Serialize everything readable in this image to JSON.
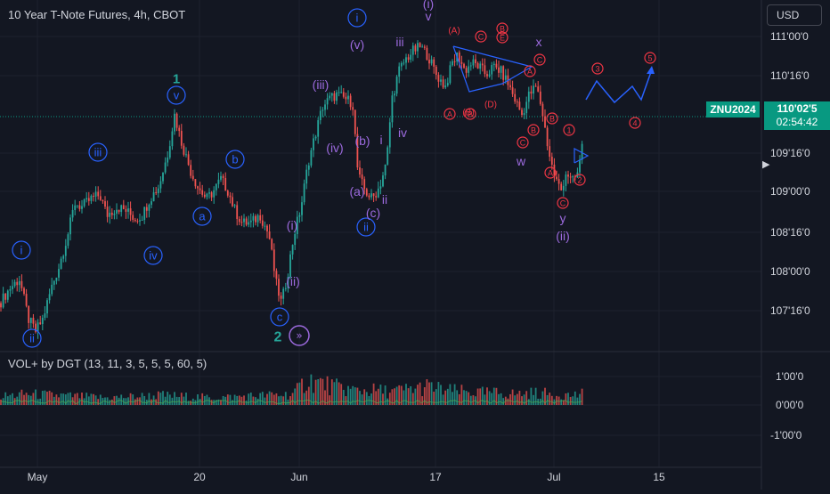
{
  "header": {
    "title": "10 Year T-Note Futures, 4h, CBOT",
    "currency": "USD"
  },
  "indicator": {
    "title": "VOL+ by DGT (13, 11, 3, 5, 5, 5, 60, 5)"
  },
  "price_badge": {
    "ticker": "ZNU2024",
    "price": "110'02'5",
    "countdown": "02:54:42"
  },
  "colors": {
    "background": "#131722",
    "up": "#26a69a",
    "down": "#ef5350",
    "wave_blue": "#2962ff",
    "wave_purple": "#9c6ade",
    "wave_red": "#f23645",
    "wave_teal": "#26a69a",
    "grid": "#1e222d",
    "price_line": "#089981"
  },
  "chart_data": [
    {
      "type": "candlestick",
      "title": "10 Year T-Note Futures, 4h, CBOT",
      "x_tick_labels": [
        "May",
        "20",
        "Jun",
        "17",
        "Jul",
        "15"
      ],
      "y_tick_labels": [
        "111'00'0",
        "110'16'0",
        "110'02'5",
        "109'16'0",
        "109'00'0",
        "108'16'0",
        "108'00'0",
        "107'16'0"
      ],
      "ylim": [
        107.2,
        111.2
      ],
      "last_price": 110.078,
      "grid": true,
      "close_path": [
        [
          0,
          107.75
        ],
        [
          12,
          107.95
        ],
        [
          22,
          108.05
        ],
        [
          32,
          107.55
        ],
        [
          40,
          107.4
        ],
        [
          48,
          107.55
        ],
        [
          58,
          107.95
        ],
        [
          66,
          108.2
        ],
        [
          76,
          108.6
        ],
        [
          84,
          109.0
        ],
        [
          92,
          108.95
        ],
        [
          102,
          109.05
        ],
        [
          112,
          109.1
        ],
        [
          120,
          108.85
        ],
        [
          132,
          108.95
        ],
        [
          142,
          108.9
        ],
        [
          152,
          108.8
        ],
        [
          160,
          108.85
        ],
        [
          168,
          109.05
        ],
        [
          178,
          109.2
        ],
        [
          188,
          109.6
        ],
        [
          196,
          110.1
        ],
        [
          204,
          109.75
        ],
        [
          214,
          109.4
        ],
        [
          222,
          109.2
        ],
        [
          232,
          109.05
        ],
        [
          240,
          109.15
        ],
        [
          248,
          109.3
        ],
        [
          256,
          109.15
        ],
        [
          264,
          108.9
        ],
        [
          272,
          108.75
        ],
        [
          282,
          108.75
        ],
        [
          292,
          108.85
        ],
        [
          302,
          108.6
        ],
        [
          310,
          108.0
        ],
        [
          316,
          107.75
        ],
        [
          322,
          108.05
        ],
        [
          330,
          108.6
        ],
        [
          338,
          108.95
        ],
        [
          346,
          109.5
        ],
        [
          354,
          109.85
        ],
        [
          362,
          110.2
        ],
        [
          370,
          110.3
        ],
        [
          378,
          110.35
        ],
        [
          388,
          110.3
        ],
        [
          396,
          110.25
        ],
        [
          402,
          109.35
        ],
        [
          410,
          109.15
        ],
        [
          418,
          109.05
        ],
        [
          426,
          109.2
        ],
        [
          434,
          109.5
        ],
        [
          440,
          110.3
        ],
        [
          448,
          110.65
        ],
        [
          456,
          110.8
        ],
        [
          464,
          110.9
        ],
        [
          472,
          110.95
        ],
        [
          480,
          110.85
        ],
        [
          490,
          110.6
        ],
        [
          500,
          110.45
        ],
        [
          508,
          110.75
        ],
        [
          514,
          110.85
        ],
        [
          522,
          110.65
        ],
        [
          530,
          110.75
        ],
        [
          538,
          110.7
        ],
        [
          546,
          110.6
        ],
        [
          554,
          110.7
        ],
        [
          562,
          110.65
        ],
        [
          570,
          110.5
        ],
        [
          578,
          110.3
        ],
        [
          586,
          110.1
        ],
        [
          594,
          110.35
        ],
        [
          602,
          110.45
        ],
        [
          608,
          110.2
        ],
        [
          616,
          109.65
        ],
        [
          622,
          109.35
        ],
        [
          630,
          109.15
        ],
        [
          636,
          109.4
        ],
        [
          642,
          109.25
        ],
        [
          648,
          109.35
        ],
        [
          652,
          109.55
        ],
        [
          656,
          110.08
        ]
      ],
      "volume_path": [
        [
          0,
          0.35
        ],
        [
          30,
          0.45
        ],
        [
          60,
          0.4
        ],
        [
          90,
          0.35
        ],
        [
          120,
          0.3
        ],
        [
          150,
          0.35
        ],
        [
          180,
          0.4
        ],
        [
          210,
          0.35
        ],
        [
          240,
          0.3
        ],
        [
          270,
          0.35
        ],
        [
          300,
          0.4
        ],
        [
          330,
          0.45
        ],
        [
          345,
          1.05
        ],
        [
          360,
          0.9
        ],
        [
          380,
          0.7
        ],
        [
          400,
          0.6
        ],
        [
          420,
          0.6
        ],
        [
          440,
          0.55
        ],
        [
          460,
          0.65
        ],
        [
          480,
          0.75
        ],
        [
          500,
          0.6
        ],
        [
          520,
          0.55
        ],
        [
          540,
          0.5
        ],
        [
          560,
          0.5
        ],
        [
          580,
          0.45
        ],
        [
          600,
          0.5
        ],
        [
          620,
          0.45
        ],
        [
          640,
          0.4
        ],
        [
          656,
          0.45
        ]
      ]
    },
    {
      "type": "bar",
      "title": "VOL+ by DGT (13, 11, 3, 5, 5, 5, 60, 5)",
      "y_tick_labels": [
        "1'00'0",
        "0'00'0",
        "-1'00'0"
      ],
      "ylim": [
        -1.2,
        1.2
      ]
    }
  ],
  "annotations": {
    "circle_labels": [
      {
        "text": "i",
        "color": "wave_blue",
        "x": 24,
        "y": 281
      },
      {
        "text": "ii",
        "color": "wave_blue",
        "x": 36,
        "y": 380
      },
      {
        "text": "iii",
        "color": "wave_blue",
        "x": 110,
        "y": 171
      },
      {
        "text": "iv",
        "color": "wave_blue",
        "x": 172,
        "y": 287
      },
      {
        "text": "v",
        "color": "wave_blue",
        "x": 198,
        "y": 107
      },
      {
        "text": "a",
        "color": "wave_blue",
        "x": 227,
        "y": 243
      },
      {
        "text": "b",
        "color": "wave_blue",
        "x": 264,
        "y": 179
      },
      {
        "text": "c",
        "color": "wave_blue",
        "x": 314,
        "y": 356
      },
      {
        "text": "i",
        "color": "wave_blue",
        "x": 401,
        "y": 20
      },
      {
        "text": "ii",
        "color": "wave_blue",
        "x": 411,
        "y": 255
      },
      {
        "text": "3",
        "color": "wave_red",
        "x": 671,
        "y": 77
      },
      {
        "text": "4",
        "color": "wave_red",
        "x": 713,
        "y": 138
      },
      {
        "text": "5",
        "color": "wave_red",
        "x": 730,
        "y": 65
      },
      {
        "text": "1",
        "color": "wave_red",
        "x": 639,
        "y": 146
      },
      {
        "text": "2",
        "color": "wave_red",
        "x": 651,
        "y": 202
      },
      {
        "text": "A",
        "color": "wave_red",
        "x": 505,
        "y": 128
      },
      {
        "text": "B",
        "color": "wave_red",
        "x": 528,
        "y": 128
      },
      {
        "text": "C",
        "color": "wave_red",
        "x": 540,
        "y": 41
      },
      {
        "text": "E",
        "color": "wave_red",
        "x": 564,
        "y": 42
      },
      {
        "text": "B",
        "color": "wave_red",
        "x": 564,
        "y": 32
      },
      {
        "text": "A",
        "color": "wave_red",
        "x": 595,
        "y": 80
      },
      {
        "text": "C",
        "color": "wave_red",
        "x": 606,
        "y": 67
      },
      {
        "text": "B",
        "color": "wave_red",
        "x": 620,
        "y": 133
      },
      {
        "text": "B",
        "color": "wave_red",
        "x": 599,
        "y": 146
      },
      {
        "text": "C",
        "color": "wave_red",
        "x": 587,
        "y": 160
      },
      {
        "text": "A",
        "color": "wave_red",
        "x": 618,
        "y": 194
      },
      {
        "text": "C",
        "color": "wave_red",
        "x": 632,
        "y": 228
      }
    ],
    "texts": [
      {
        "text": "1",
        "color": "wave_teal",
        "x": 198,
        "y": 88,
        "size": 15,
        "bold": true
      },
      {
        "text": "2",
        "color": "wave_teal",
        "x": 312,
        "y": 378,
        "size": 16,
        "bold": true
      },
      {
        "text": "(i)",
        "color": "wave_purple",
        "x": 328,
        "y": 253,
        "size": 14
      },
      {
        "text": "(ii)",
        "color": "wave_purple",
        "x": 329,
        "y": 316,
        "size": 14
      },
      {
        "text": "(iii)",
        "color": "wave_purple",
        "x": 360,
        "y": 95,
        "size": 14
      },
      {
        "text": "(iv)",
        "color": "wave_purple",
        "x": 376,
        "y": 166,
        "size": 14
      },
      {
        "text": "(v)",
        "color": "wave_purple",
        "x": 401,
        "y": 50,
        "size": 14
      },
      {
        "text": "(b)",
        "color": "wave_purple",
        "x": 407,
        "y": 158,
        "size": 14
      },
      {
        "text": "(a)",
        "color": "wave_purple",
        "x": 401,
        "y": 215,
        "size": 14
      },
      {
        "text": "(c)",
        "color": "wave_purple",
        "x": 419,
        "y": 239,
        "size": 14
      },
      {
        "text": "i",
        "color": "wave_purple",
        "x": 428,
        "y": 157,
        "size": 14
      },
      {
        "text": "ii",
        "color": "wave_purple",
        "x": 432,
        "y": 224,
        "size": 14
      },
      {
        "text": "iii",
        "color": "wave_purple",
        "x": 449,
        "y": 47,
        "size": 14
      },
      {
        "text": "iv",
        "color": "wave_purple",
        "x": 452,
        "y": 149,
        "size": 14
      },
      {
        "text": "(i)",
        "color": "wave_purple",
        "x": 481,
        "y": 4,
        "size": 14
      },
      {
        "text": "v",
        "color": "wave_purple",
        "x": 481,
        "y": 18,
        "size": 14
      },
      {
        "text": "(A)",
        "color": "wave_red",
        "x": 510,
        "y": 34,
        "size": 10
      },
      {
        "text": "(B)",
        "color": "wave_red",
        "x": 526,
        "y": 126,
        "size": 10
      },
      {
        "text": "(D)",
        "color": "wave_red",
        "x": 551,
        "y": 117,
        "size": 10
      },
      {
        "text": "x",
        "color": "wave_purple",
        "x": 605,
        "y": 47,
        "size": 14
      },
      {
        "text": "w",
        "color": "wave_purple",
        "x": 585,
        "y": 181,
        "size": 14
      },
      {
        "text": "y",
        "color": "wave_purple",
        "x": 632,
        "y": 245,
        "size": 14
      },
      {
        "text": "(ii)",
        "color": "wave_purple",
        "x": 632,
        "y": 265,
        "size": 14
      }
    ]
  }
}
